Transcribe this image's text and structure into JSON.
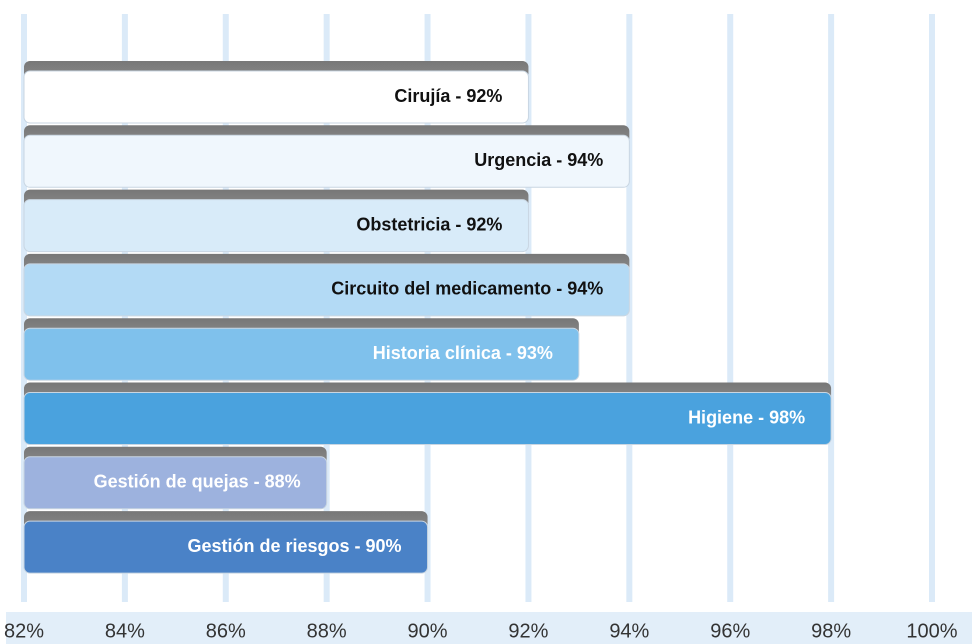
{
  "chart_data": {
    "type": "bar",
    "orientation": "horizontal",
    "values": [
      92,
      94,
      92,
      94,
      93,
      98,
      88,
      90
    ],
    "value_labels": [
      "Cirujía - 92%",
      "Urgencia - 94%",
      "Obstetricia - 92%",
      "Circuito del medicamento - 94%",
      "Historia clínica - 93%",
      "Higiene - 98%",
      "Gestión de quejas - 88%",
      "Gestión de riesgos - 90%"
    ],
    "colors": [
      "#ffffff",
      "#f0f7fd",
      "#d8ebf9",
      "#b3daf5",
      "#7fc1ec",
      "#4aa2de",
      "#9db2de",
      "#4a82c7"
    ],
    "label_colors": [
      "#111111",
      "#111111",
      "#111111",
      "#111111",
      "#ffffff",
      "#ffffff",
      "#ffffff",
      "#ffffff"
    ],
    "xlim": [
      82,
      100
    ],
    "xticks": [
      {
        "value": 82,
        "label": "82%"
      },
      {
        "value": 84,
        "label": "84%"
      },
      {
        "value": 86,
        "label": "86%"
      },
      {
        "value": 88,
        "label": "88%"
      },
      {
        "value": 90,
        "label": "90%"
      },
      {
        "value": 92,
        "label": "92%"
      },
      {
        "value": 94,
        "label": "94%"
      },
      {
        "value": 96,
        "label": "96%"
      },
      {
        "value": 98,
        "label": "98%"
      },
      {
        "value": 100,
        "label": "100%"
      }
    ],
    "grid": true
  }
}
